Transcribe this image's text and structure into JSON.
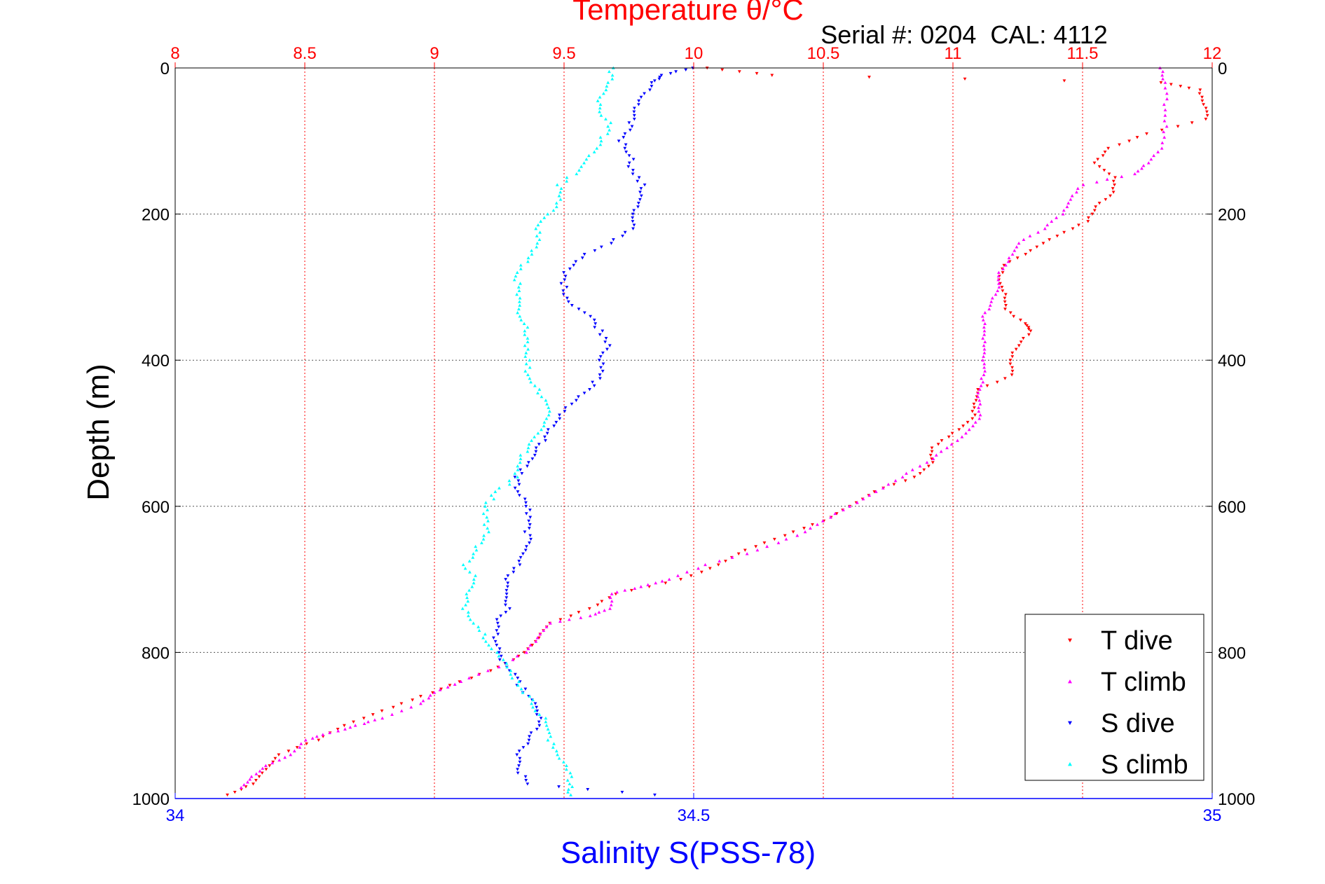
{
  "chart_data": {
    "type": "scatter",
    "title": "Temperature θ/°C",
    "subtitle": "Serial #: 0204  CAL: 4112",
    "xlabel": "Salinity S(PSS-78)",
    "ylabel": "Depth (m)",
    "x_bottom": {
      "label": "Salinity S(PSS-78)",
      "lim": [
        34,
        35
      ],
      "ticks": [
        "34",
        "34.5",
        "35"
      ],
      "tick_values": [
        34,
        34.5,
        35
      ],
      "color": "#0000ff"
    },
    "x_top": {
      "label": "Temperature θ/°C",
      "lim": [
        8,
        12
      ],
      "ticks": [
        "8",
        "8.5",
        "9",
        "9.5",
        "10",
        "10.5",
        "11",
        "11.5",
        "12"
      ],
      "tick_values": [
        8,
        8.5,
        9,
        9.5,
        10,
        10.5,
        11,
        11.5,
        12
      ],
      "color": "#ff0000",
      "grid": true,
      "grid_style": "dotted"
    },
    "y_axis": {
      "lim": [
        0,
        1000
      ],
      "reversed": true,
      "ticks": [
        "0",
        "200",
        "400",
        "600",
        "800",
        "1000"
      ],
      "tick_values": [
        0,
        200,
        400,
        600,
        800,
        1000
      ],
      "grid": true,
      "grid_style": "dotted",
      "grid_color": "#555555"
    },
    "legend_position": "bottom-right",
    "series": [
      {
        "name": "T dive",
        "axis": "temperature",
        "color": "#ff0000",
        "marker": "triangle-down",
        "points": [
          [
            10.05,
            0
          ],
          [
            10.3,
            10
          ],
          [
            11.8,
            20
          ],
          [
            11.95,
            30
          ],
          [
            11.97,
            50
          ],
          [
            11.98,
            70
          ],
          [
            11.75,
            90
          ],
          [
            11.6,
            110
          ],
          [
            11.55,
            130
          ],
          [
            11.62,
            150
          ],
          [
            11.62,
            170
          ],
          [
            11.55,
            190
          ],
          [
            11.52,
            210
          ],
          [
            11.4,
            230
          ],
          [
            11.3,
            250
          ],
          [
            11.2,
            270
          ],
          [
            11.18,
            290
          ],
          [
            11.2,
            310
          ],
          [
            11.2,
            330
          ],
          [
            11.28,
            350
          ],
          [
            11.3,
            360
          ],
          [
            11.25,
            380
          ],
          [
            11.22,
            400
          ],
          [
            11.23,
            420
          ],
          [
            11.1,
            440
          ],
          [
            11.08,
            460
          ],
          [
            11.08,
            480
          ],
          [
            11.0,
            500
          ],
          [
            10.92,
            520
          ],
          [
            10.92,
            540
          ],
          [
            10.85,
            560
          ],
          [
            10.7,
            580
          ],
          [
            10.6,
            600
          ],
          [
            10.5,
            620
          ],
          [
            10.35,
            640
          ],
          [
            10.2,
            660
          ],
          [
            10.1,
            680
          ],
          [
            9.95,
            700
          ],
          [
            9.7,
            720
          ],
          [
            9.6,
            740
          ],
          [
            9.45,
            760
          ],
          [
            9.4,
            780
          ],
          [
            9.35,
            800
          ],
          [
            9.25,
            820
          ],
          [
            9.1,
            840
          ],
          [
            8.95,
            860
          ],
          [
            8.8,
            880
          ],
          [
            8.65,
            900
          ],
          [
            8.55,
            920
          ],
          [
            8.4,
            940
          ],
          [
            8.35,
            960
          ],
          [
            8.3,
            980
          ],
          [
            8.2,
            995
          ]
        ]
      },
      {
        "name": "T climb",
        "axis": "temperature",
        "color": "#ff00ff",
        "marker": "triangle-up",
        "points": [
          [
            11.8,
            0
          ],
          [
            11.82,
            20
          ],
          [
            11.82,
            50
          ],
          [
            11.82,
            80
          ],
          [
            11.8,
            110
          ],
          [
            11.75,
            130
          ],
          [
            11.7,
            145
          ],
          [
            11.5,
            160
          ],
          [
            11.45,
            180
          ],
          [
            11.42,
            200
          ],
          [
            11.35,
            220
          ],
          [
            11.25,
            240
          ],
          [
            11.22,
            260
          ],
          [
            11.18,
            280
          ],
          [
            11.18,
            300
          ],
          [
            11.15,
            320
          ],
          [
            11.12,
            340
          ],
          [
            11.12,
            360
          ],
          [
            11.12,
            380
          ],
          [
            11.12,
            400
          ],
          [
            11.12,
            420
          ],
          [
            11.1,
            440
          ],
          [
            11.1,
            460
          ],
          [
            11.1,
            480
          ],
          [
            11.05,
            500
          ],
          [
            10.98,
            520
          ],
          [
            10.9,
            540
          ],
          [
            10.8,
            560
          ],
          [
            10.7,
            580
          ],
          [
            10.6,
            600
          ],
          [
            10.5,
            620
          ],
          [
            10.4,
            640
          ],
          [
            10.25,
            660
          ],
          [
            10.05,
            680
          ],
          [
            9.9,
            700
          ],
          [
            9.8,
            710
          ],
          [
            9.68,
            720
          ],
          [
            9.68,
            740
          ],
          [
            9.6,
            750
          ],
          [
            9.45,
            760
          ],
          [
            9.4,
            780
          ],
          [
            9.35,
            800
          ],
          [
            9.25,
            820
          ],
          [
            9.1,
            840
          ],
          [
            9.0,
            855
          ],
          [
            8.95,
            870
          ],
          [
            8.8,
            890
          ],
          [
            8.7,
            900
          ],
          [
            8.6,
            910
          ],
          [
            8.5,
            920
          ],
          [
            8.45,
            940
          ],
          [
            8.35,
            955
          ],
          [
            8.3,
            970
          ],
          [
            8.25,
            985
          ]
        ]
      },
      {
        "name": "S dive",
        "axis": "salinity",
        "color": "#0000ff",
        "marker": "triangle-down",
        "points": [
          [
            34.5,
            0
          ],
          [
            34.47,
            10
          ],
          [
            34.46,
            20
          ],
          [
            34.45,
            40
          ],
          [
            34.44,
            60
          ],
          [
            34.44,
            80
          ],
          [
            34.43,
            100
          ],
          [
            34.44,
            120
          ],
          [
            34.44,
            140
          ],
          [
            34.45,
            160
          ],
          [
            34.45,
            180
          ],
          [
            34.44,
            200
          ],
          [
            34.44,
            220
          ],
          [
            34.42,
            240
          ],
          [
            34.39,
            260
          ],
          [
            34.375,
            280
          ],
          [
            34.375,
            300
          ],
          [
            34.38,
            320
          ],
          [
            34.4,
            340
          ],
          [
            34.41,
            360
          ],
          [
            34.42,
            380
          ],
          [
            34.41,
            400
          ],
          [
            34.41,
            420
          ],
          [
            34.4,
            440
          ],
          [
            34.38,
            460
          ],
          [
            34.37,
            480
          ],
          [
            34.36,
            500
          ],
          [
            34.35,
            520
          ],
          [
            34.34,
            540
          ],
          [
            34.33,
            560
          ],
          [
            34.33,
            580
          ],
          [
            34.34,
            600
          ],
          [
            34.34,
            620
          ],
          [
            34.34,
            640
          ],
          [
            34.34,
            660
          ],
          [
            34.33,
            680
          ],
          [
            34.32,
            700
          ],
          [
            34.32,
            720
          ],
          [
            34.32,
            740
          ],
          [
            34.31,
            760
          ],
          [
            34.31,
            780
          ],
          [
            34.31,
            800
          ],
          [
            34.32,
            820
          ],
          [
            34.33,
            840
          ],
          [
            34.34,
            860
          ],
          [
            34.35,
            880
          ],
          [
            34.35,
            900
          ],
          [
            34.34,
            920
          ],
          [
            34.33,
            940
          ],
          [
            34.33,
            960
          ],
          [
            34.34,
            980
          ],
          [
            34.46,
            995
          ]
        ]
      },
      {
        "name": "S climb",
        "axis": "salinity",
        "color": "#00ffff",
        "marker": "triangle-up",
        "points": [
          [
            34.42,
            0
          ],
          [
            34.42,
            20
          ],
          [
            34.41,
            40
          ],
          [
            34.41,
            60
          ],
          [
            34.42,
            80
          ],
          [
            34.41,
            100
          ],
          [
            34.4,
            120
          ],
          [
            34.39,
            140
          ],
          [
            34.37,
            160
          ],
          [
            34.37,
            180
          ],
          [
            34.36,
            200
          ],
          [
            34.35,
            220
          ],
          [
            34.35,
            240
          ],
          [
            34.34,
            260
          ],
          [
            34.33,
            280
          ],
          [
            34.33,
            300
          ],
          [
            34.33,
            320
          ],
          [
            34.33,
            340
          ],
          [
            34.34,
            360
          ],
          [
            34.34,
            380
          ],
          [
            34.34,
            400
          ],
          [
            34.34,
            420
          ],
          [
            34.35,
            440
          ],
          [
            34.36,
            460
          ],
          [
            34.36,
            480
          ],
          [
            34.35,
            500
          ],
          [
            34.34,
            520
          ],
          [
            34.33,
            540
          ],
          [
            34.33,
            560
          ],
          [
            34.31,
            580
          ],
          [
            34.3,
            600
          ],
          [
            34.3,
            620
          ],
          [
            34.3,
            640
          ],
          [
            34.29,
            660
          ],
          [
            34.28,
            680
          ],
          [
            34.29,
            700
          ],
          [
            34.28,
            720
          ],
          [
            34.28,
            740
          ],
          [
            34.29,
            760
          ],
          [
            34.3,
            780
          ],
          [
            34.31,
            800
          ],
          [
            34.32,
            820
          ],
          [
            34.33,
            840
          ],
          [
            34.34,
            860
          ],
          [
            34.35,
            880
          ],
          [
            34.36,
            900
          ],
          [
            34.36,
            920
          ],
          [
            34.37,
            940
          ],
          [
            34.38,
            960
          ],
          [
            34.38,
            980
          ],
          [
            34.38,
            995
          ]
        ]
      }
    ]
  }
}
